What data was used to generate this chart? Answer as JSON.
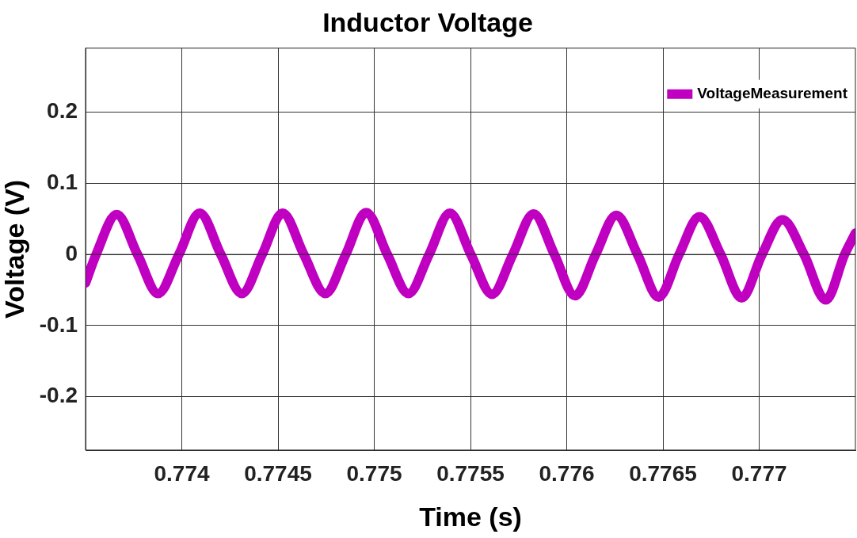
{
  "chart_data": {
    "type": "line",
    "title": "Inductor Voltage",
    "xlabel": "Time (s)",
    "ylabel": "Voltage (V)",
    "xlim": [
      0.7735,
      0.7775
    ],
    "xticks": [
      0.774,
      0.7745,
      0.775,
      0.7755,
      0.776,
      0.7765,
      0.777
    ],
    "ylim": [
      -0.275,
      0.29
    ],
    "yticks": [
      -0.2,
      -0.1,
      0,
      0.1,
      0.2
    ],
    "grid": true,
    "legend": "top right",
    "marker": "none",
    "line_style": "solid",
    "series": [
      {
        "name": "VoltageMeasurement",
        "color": "#c000c0",
        "x": [
          0.7735,
          0.773555,
          0.773662,
          0.77377,
          0.773877,
          0.773985,
          0.774093,
          0.774203,
          0.774312,
          0.774418,
          0.774524,
          0.774634,
          0.774746,
          0.774852,
          0.774958,
          0.775068,
          0.775178,
          0.775285,
          0.775393,
          0.775502,
          0.775612,
          0.77572,
          0.775828,
          0.775936,
          0.776043,
          0.77615,
          0.776258,
          0.776368,
          0.776478,
          0.776584,
          0.77669,
          0.7768,
          0.776909,
          0.777015,
          0.777121,
          0.777233,
          0.777346,
          0.777444,
          0.7775
        ],
        "values": [
          -0.04,
          0,
          0.056,
          0,
          -0.055,
          0,
          0.058,
          0,
          -0.055,
          0,
          0.058,
          0,
          -0.055,
          0,
          0.059,
          0,
          -0.055,
          0,
          0.058,
          0,
          -0.056,
          0,
          0.057,
          0,
          -0.058,
          0,
          0.055,
          0,
          -0.06,
          0,
          0.053,
          0,
          -0.061,
          0,
          0.049,
          0,
          -0.064,
          0,
          0.03
        ]
      }
    ]
  }
}
